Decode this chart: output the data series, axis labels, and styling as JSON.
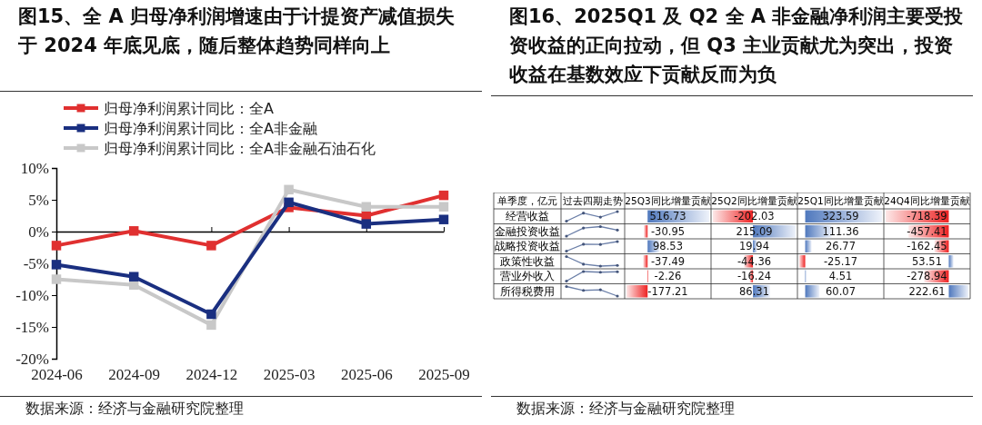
{
  "chart_data": [
    {
      "type": "line",
      "title": "图15、全 A 归母净利润增速由于计提资产减值损失于 2024 年底见底，随后整体趋势同样向上",
      "categories": [
        "2024-06",
        "2024-09",
        "2024-12",
        "2025-03",
        "2025-06",
        "2025-09"
      ],
      "series": [
        {
          "name": "归母净利润累计同比：全A",
          "color": "#e03030",
          "values": [
            -2.2,
            0.1,
            -2.2,
            3.8,
            2.5,
            5.7
          ]
        },
        {
          "name": "归母净利润累计同比：全A非金融",
          "color": "#1a2f80",
          "values": [
            -5.2,
            -7.1,
            -13.0,
            4.6,
            1.2,
            1.9
          ]
        },
        {
          "name": "归母净利润累计同比：全A非金融石油石化",
          "color": "#c8c8c8",
          "values": [
            -7.5,
            -8.4,
            -14.7,
            6.6,
            3.9,
            3.9
          ]
        }
      ],
      "ylim": [
        -20,
        10
      ],
      "yticks": [
        {
          "value": -20,
          "label": "-20%"
        },
        {
          "value": -15,
          "label": "-15%"
        },
        {
          "value": -10,
          "label": "-10%"
        },
        {
          "value": -5,
          "label": "-5%"
        },
        {
          "value": 0,
          "label": "0%"
        },
        {
          "value": 5,
          "label": "5%"
        },
        {
          "value": 10,
          "label": "10%"
        }
      ],
      "marker": "square",
      "legend": "top left",
      "annotations": [
        "数据来源：经济与金融研究院整理"
      ]
    },
    {
      "type": "heatmap",
      "title": "图16、2025Q1 及 Q2 全 A 非金融净利润主要受投资收益的正向拉动，但 Q3 主业贡献尤为突出，投资收益在基数效应下贡献反而为负",
      "ylabel": "单季度，亿元",
      "categories": [
        "过去四期走势",
        "25Q3同比增量贡献",
        "25Q2同比增量贡献",
        "25Q1同比增量贡献",
        "24Q4同比增量贡献"
      ],
      "y_categories": [
        "经营收益",
        "金融投资收益",
        "战略投资收益",
        "政策性收益",
        "营业外收入",
        "所得税费用"
      ],
      "cells": [
        [
          null,
          516.73,
          -202.03,
          323.59,
          -718.39
        ],
        [
          null,
          -30.95,
          215.09,
          111.36,
          -457.41
        ],
        [
          null,
          98.53,
          19.94,
          26.77,
          -162.45
        ],
        [
          null,
          -37.49,
          -44.36,
          -25.17,
          53.51
        ],
        [
          null,
          -2.26,
          -16.24,
          4.51,
          -278.94
        ],
        [
          null,
          -177.21,
          86.31,
          60.07,
          222.61
        ]
      ],
      "data_labels": true,
      "annotations": [
        "数据来源：经济与金融研究院整理"
      ]
    }
  ]
}
